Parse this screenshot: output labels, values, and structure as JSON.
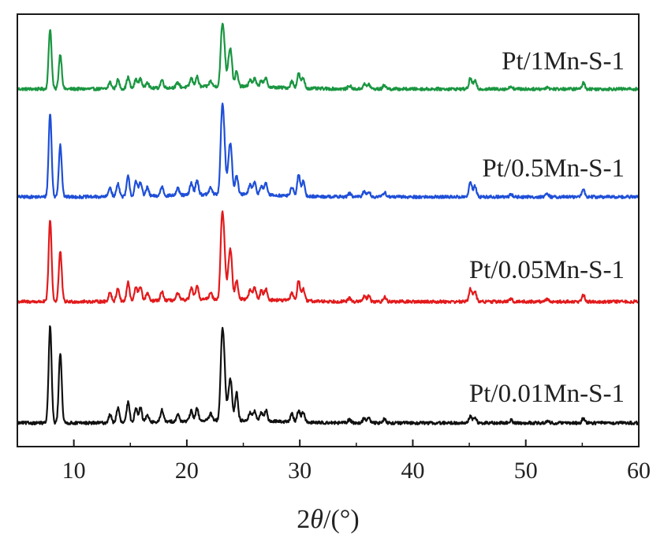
{
  "chart_data": {
    "type": "line",
    "title": "",
    "xlabel_parts": [
      "2",
      "θ",
      "/(°)"
    ],
    "ylabel": "",
    "xlim": [
      5,
      60
    ],
    "x_ticks": [
      10,
      20,
      30,
      40,
      50,
      60
    ],
    "x_tick_labels": [
      "10",
      "20",
      "30",
      "40",
      "50",
      "60"
    ],
    "y_ticks": [],
    "grid": false,
    "legend": "inline labels right of each trace",
    "peaks_2theta": [
      7.9,
      8.8,
      13.2,
      13.9,
      14.8,
      15.5,
      15.9,
      16.5,
      17.8,
      19.2,
      20.4,
      20.9,
      22.1,
      23.1,
      23.3,
      23.7,
      23.9,
      24.4,
      25.6,
      26.0,
      26.6,
      27.0,
      29.3,
      29.9,
      30.3,
      34.4,
      35.7,
      36.1,
      37.5,
      45.1,
      45.5,
      48.7,
      51.9,
      55.1
    ],
    "series": [
      {
        "name": "Pt/1Mn-S-1",
        "color": "#1a9641",
        "stack_index": 3,
        "peak_heights": [
          0.9,
          0.52,
          0.1,
          0.13,
          0.17,
          0.14,
          0.15,
          0.1,
          0.12,
          0.07,
          0.13,
          0.15,
          0.08,
          0.72,
          0.52,
          0.3,
          0.45,
          0.22,
          0.1,
          0.12,
          0.1,
          0.13,
          0.1,
          0.22,
          0.15,
          0.05,
          0.07,
          0.07,
          0.06,
          0.16,
          0.12,
          0.04,
          0.03,
          0.09
        ]
      },
      {
        "name": "Pt/0.5Mn-S-1",
        "color": "#1f4fd8",
        "stack_index": 2,
        "peak_heights": [
          1.25,
          0.78,
          0.14,
          0.2,
          0.3,
          0.22,
          0.22,
          0.13,
          0.14,
          0.1,
          0.18,
          0.22,
          0.1,
          1.05,
          0.7,
          0.38,
          0.62,
          0.28,
          0.15,
          0.18,
          0.14,
          0.17,
          0.13,
          0.32,
          0.22,
          0.05,
          0.08,
          0.08,
          0.07,
          0.22,
          0.16,
          0.04,
          0.04,
          0.11
        ]
      },
      {
        "name": "Pt/0.05Mn-S-1",
        "color": "#e31a1c",
        "stack_index": 1,
        "peak_heights": [
          1.22,
          0.75,
          0.14,
          0.2,
          0.28,
          0.22,
          0.22,
          0.12,
          0.13,
          0.1,
          0.17,
          0.2,
          0.1,
          1.05,
          0.66,
          0.36,
          0.6,
          0.28,
          0.14,
          0.18,
          0.13,
          0.16,
          0.12,
          0.3,
          0.18,
          0.05,
          0.08,
          0.08,
          0.07,
          0.2,
          0.15,
          0.04,
          0.04,
          0.1
        ]
      },
      {
        "name": "Pt/0.01Mn-S-1",
        "color": "#111111",
        "stack_index": 0,
        "peak_heights": [
          1.45,
          1.05,
          0.12,
          0.22,
          0.3,
          0.22,
          0.22,
          0.12,
          0.18,
          0.1,
          0.15,
          0.18,
          0.1,
          1.05,
          0.75,
          0.3,
          0.5,
          0.42,
          0.12,
          0.14,
          0.12,
          0.16,
          0.12,
          0.18,
          0.15,
          0.05,
          0.07,
          0.07,
          0.06,
          0.1,
          0.08,
          0.04,
          0.03,
          0.07
        ]
      }
    ]
  }
}
